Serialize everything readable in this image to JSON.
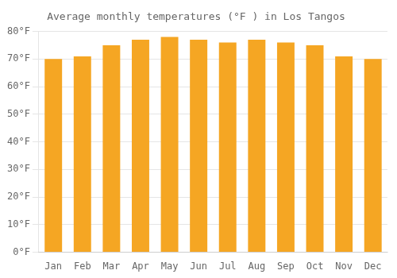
{
  "chart_data": {
    "type": "bar",
    "title": "Average monthly temperatures (°F ) in Los Tangos",
    "categories": [
      "Jan",
      "Feb",
      "Mar",
      "Apr",
      "May",
      "Jun",
      "Jul",
      "Aug",
      "Sep",
      "Oct",
      "Nov",
      "Dec"
    ],
    "values": [
      70,
      71,
      75,
      77,
      78,
      77,
      76,
      77,
      76,
      75,
      71,
      70
    ],
    "color": "#F5A623",
    "ylim": [
      0,
      80
    ],
    "yticks": [
      {
        "value": 0,
        "label": "0°F"
      },
      {
        "value": 10,
        "label": "10°F"
      },
      {
        "value": 20,
        "label": "20°F"
      },
      {
        "value": 30,
        "label": "30°F"
      },
      {
        "value": 40,
        "label": "40°F"
      },
      {
        "value": 50,
        "label": "50°F"
      },
      {
        "value": 60,
        "label": "60°F"
      },
      {
        "value": 70,
        "label": "70°F"
      },
      {
        "value": 80,
        "label": "80°F"
      }
    ],
    "grid": true
  }
}
